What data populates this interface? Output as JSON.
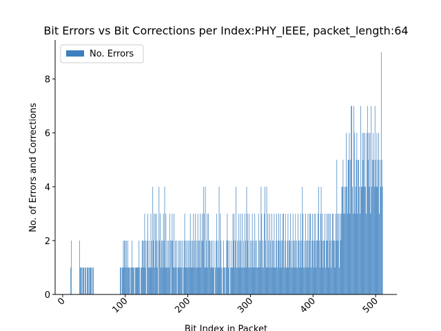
{
  "chart_data": {
    "type": "bar",
    "title": "Bit Errors vs Bit Corrections per Index:PHY_IEEE, packet_length:64",
    "x_label": "Bit Index in Packet",
    "y_label": "No. of Errors and Corrections",
    "legend": "upper left",
    "bar_width": 0.8,
    "xlim": [
      -12,
      534
    ],
    "ylim": [
      0,
      9.45
    ],
    "xticks": [
      0,
      100,
      200,
      300,
      400,
      500
    ],
    "yticks": [
      0,
      2,
      4,
      6,
      8
    ],
    "x": [
      0,
      1,
      2,
      3,
      4,
      5,
      6,
      7,
      8,
      9,
      10,
      11,
      12,
      13,
      14,
      15,
      16,
      17,
      18,
      19,
      20,
      21,
      22,
      23,
      24,
      25,
      26,
      27,
      28,
      29,
      30,
      31,
      32,
      33,
      34,
      35,
      36,
      37,
      38,
      39,
      40,
      41,
      42,
      43,
      44,
      45,
      46,
      47,
      48,
      49,
      50,
      51,
      52,
      53,
      54,
      55,
      56,
      57,
      58,
      59,
      60,
      61,
      62,
      63,
      64,
      65,
      66,
      67,
      68,
      69,
      70,
      71,
      72,
      73,
      74,
      75,
      76,
      77,
      78,
      79,
      80,
      81,
      82,
      83,
      84,
      85,
      86,
      87,
      88,
      89,
      90,
      91,
      92,
      93,
      94,
      95,
      96,
      97,
      98,
      99,
      100,
      101,
      102,
      103,
      104,
      105,
      106,
      107,
      108,
      109,
      110,
      111,
      112,
      113,
      114,
      115,
      116,
      117,
      118,
      119,
      120,
      121,
      122,
      123,
      124,
      125,
      126,
      127,
      128,
      129,
      130,
      131,
      132,
      133,
      134,
      135,
      136,
      137,
      138,
      139,
      140,
      141,
      142,
      143,
      144,
      145,
      146,
      147,
      148,
      149,
      150,
      151,
      152,
      153,
      154,
      155,
      156,
      157,
      158,
      159,
      160,
      161,
      162,
      163,
      164,
      165,
      166,
      167,
      168,
      169,
      170,
      171,
      172,
      173,
      174,
      175,
      176,
      177,
      178,
      179,
      180,
      181,
      182,
      183,
      184,
      185,
      186,
      187,
      188,
      189,
      190,
      191,
      192,
      193,
      194,
      195,
      196,
      197,
      198,
      199,
      200,
      201,
      202,
      203,
      204,
      205,
      206,
      207,
      208,
      209,
      210,
      211,
      212,
      213,
      214,
      215,
      216,
      217,
      218,
      219,
      220,
      221,
      222,
      223,
      224,
      225,
      226,
      227,
      228,
      229,
      230,
      231,
      232,
      233,
      234,
      235,
      236,
      237,
      238,
      239,
      240,
      241,
      242,
      243,
      244,
      245,
      246,
      247,
      248,
      249,
      250,
      251,
      252,
      253,
      254,
      255,
      256,
      257,
      258,
      259,
      260,
      261,
      262,
      263,
      264,
      265,
      266,
      267,
      268,
      269,
      270,
      271,
      272,
      273,
      274,
      275,
      276,
      277,
      278,
      279,
      280,
      281,
      282,
      283,
      284,
      285,
      286,
      287,
      288,
      289,
      290,
      291,
      292,
      293,
      294,
      295,
      296,
      297,
      298,
      299,
      300,
      301,
      302,
      303,
      304,
      305,
      306,
      307,
      308,
      309,
      310,
      311,
      312,
      313,
      314,
      315,
      316,
      317,
      318,
      319,
      320,
      321,
      322,
      323,
      324,
      325,
      326,
      327,
      328,
      329,
      330,
      331,
      332,
      333,
      334,
      335,
      336,
      337,
      338,
      339,
      340,
      341,
      342,
      343,
      344,
      345,
      346,
      347,
      348,
      349,
      350,
      351,
      352,
      353,
      354,
      355,
      356,
      357,
      358,
      359,
      360,
      361,
      362,
      363,
      364,
      365,
      366,
      367,
      368,
      369,
      370,
      371,
      372,
      373,
      374,
      375,
      376,
      377,
      378,
      379,
      380,
      381,
      382,
      383,
      384,
      385,
      386,
      387,
      388,
      389,
      390,
      391,
      392,
      393,
      394,
      395,
      396,
      397,
      398,
      399,
      400,
      401,
      402,
      403,
      404,
      405,
      406,
      407,
      408,
      409,
      410,
      411,
      412,
      413,
      414,
      415,
      416,
      417,
      418,
      419,
      420,
      421,
      422,
      423,
      424,
      425,
      426,
      427,
      428,
      429,
      430,
      431,
      432,
      433,
      434,
      435,
      436,
      437,
      438,
      439,
      440,
      441,
      442,
      443,
      444,
      445,
      446,
      447,
      448,
      449,
      450,
      451,
      452,
      453,
      454,
      455,
      456,
      457,
      458,
      459,
      460,
      461,
      462,
      463,
      464,
      465,
      466,
      467,
      468,
      469,
      470,
      471,
      472,
      473,
      474,
      475,
      476,
      477,
      478,
      479,
      480,
      481,
      482,
      483,
      484,
      485,
      486,
      487,
      488,
      489,
      490,
      491,
      492,
      493,
      494,
      495,
      496,
      497,
      498,
      499,
      500,
      501,
      502,
      503,
      504,
      505,
      506,
      507,
      508,
      509,
      510,
      511
    ],
    "series": [
      {
        "name": "No. Errors",
        "color": "#3b7fbf",
        "values": [
          0,
          0,
          0,
          0,
          0,
          0,
          0,
          0,
          0,
          0,
          0,
          0,
          0,
          1,
          2,
          0,
          0,
          0,
          0,
          0,
          0,
          0,
          0,
          0,
          0,
          0,
          0,
          2,
          1,
          1,
          1,
          0,
          1,
          1,
          1,
          0,
          1,
          1,
          0,
          1,
          1,
          1,
          0,
          1,
          1,
          1,
          1,
          0,
          1,
          1,
          0,
          0,
          0,
          0,
          0,
          0,
          0,
          0,
          0,
          0,
          0,
          0,
          0,
          0,
          0,
          0,
          0,
          0,
          0,
          0,
          0,
          0,
          0,
          0,
          0,
          0,
          0,
          0,
          0,
          0,
          0,
          0,
          0,
          0,
          0,
          0,
          0,
          0,
          0,
          0,
          0,
          0,
          1,
          1,
          0,
          1,
          1,
          2,
          1,
          2,
          2,
          1,
          2,
          1,
          2,
          1,
          1,
          1,
          0,
          1,
          1,
          2,
          1,
          1,
          1,
          0,
          1,
          1,
          1,
          1,
          1,
          1,
          2,
          1,
          0,
          1,
          1,
          2,
          2,
          1,
          2,
          3,
          1,
          2,
          0,
          2,
          3,
          1,
          2,
          1,
          1,
          3,
          2,
          1,
          4,
          2,
          3,
          1,
          3,
          2,
          3,
          1,
          2,
          0,
          4,
          2,
          3,
          1,
          2,
          2,
          1,
          3,
          2,
          4,
          1,
          3,
          1,
          2,
          1,
          2,
          1,
          3,
          2,
          0,
          2,
          3,
          2,
          1,
          3,
          1,
          2,
          1,
          2,
          0,
          1,
          2,
          1,
          2,
          1,
          2,
          1,
          2,
          0,
          1,
          2,
          3,
          1,
          2,
          1,
          2,
          1,
          2,
          1,
          2,
          3,
          1,
          2,
          1,
          2,
          3,
          1,
          2,
          3,
          1,
          2,
          1,
          3,
          2,
          1,
          2,
          3,
          1,
          2,
          3,
          2,
          4,
          3,
          1,
          4,
          1,
          2,
          3,
          1,
          3,
          2,
          2,
          1,
          2,
          1,
          2,
          1,
          1,
          2,
          0,
          1,
          2,
          3,
          1,
          2,
          1,
          4,
          1,
          3,
          2,
          1,
          0,
          1,
          2,
          1,
          1,
          0,
          1,
          2,
          3,
          2,
          1,
          2,
          0,
          1,
          2,
          1,
          1,
          3,
          2,
          3,
          1,
          2,
          4,
          1,
          2,
          1,
          3,
          2,
          1,
          3,
          2,
          1,
          3,
          1,
          2,
          1,
          3,
          2,
          1,
          4,
          3,
          2,
          1,
          3,
          1,
          2,
          1,
          2,
          3,
          1,
          2,
          1,
          3,
          2,
          1,
          2,
          1,
          1,
          3,
          2,
          1,
          2,
          4,
          3,
          1,
          2,
          1,
          3,
          4,
          2,
          1,
          4,
          1,
          3,
          2,
          1,
          3,
          2,
          1,
          3,
          2,
          1,
          2,
          3,
          1,
          1,
          2,
          3,
          1,
          2,
          3,
          2,
          1,
          3,
          2,
          1,
          2,
          3,
          3,
          1,
          2,
          3,
          1,
          1,
          2,
          3,
          1,
          2,
          2,
          3,
          1,
          2,
          1,
          3,
          2,
          1,
          2,
          3,
          1,
          2,
          1,
          3,
          2,
          1,
          2,
          3,
          1,
          2,
          4,
          3,
          1,
          2,
          1,
          3,
          2,
          1,
          2,
          3,
          1,
          2,
          3,
          3,
          1,
          2,
          3,
          2,
          1,
          3,
          2,
          3,
          1,
          2,
          2,
          3,
          4,
          2,
          1,
          3,
          4,
          2,
          3,
          1,
          2,
          2,
          3,
          1,
          2,
          3,
          2,
          3,
          1,
          3,
          2,
          3,
          1,
          2,
          3,
          3,
          2,
          2,
          1,
          3,
          2,
          5,
          3,
          2,
          3,
          1,
          3,
          2,
          3,
          4,
          4,
          5,
          3,
          4,
          3,
          4,
          6,
          4,
          3,
          5,
          5,
          6,
          3,
          5,
          7,
          7,
          4,
          3,
          7,
          6,
          3,
          4,
          5,
          6,
          3,
          5,
          5,
          4,
          3,
          7,
          4,
          4,
          6,
          5,
          6,
          4,
          6,
          4,
          3,
          6,
          7,
          5,
          6,
          4,
          6,
          3,
          7,
          4,
          5,
          6,
          5,
          4,
          7,
          5,
          4,
          6,
          4,
          5,
          6,
          3,
          5,
          4,
          9,
          5,
          4
        ]
      }
    ]
  }
}
